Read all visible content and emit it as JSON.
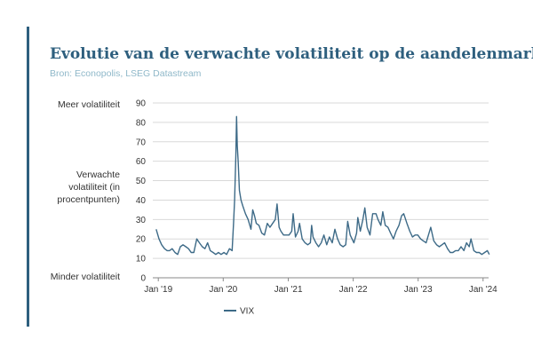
{
  "title": "Evolutie van de verwachte volatiliteit op de aandelenmarkt",
  "subtitle": "Bron: Econopolis, LSEG Datastream",
  "y_labels": {
    "top": "Meer volatiliteit",
    "middle": "Verwachte volatiliteit (in procentpunten)",
    "bottom": "Minder volatiliteit"
  },
  "colors": {
    "accent": "#2e5f7e",
    "series": "#3d6a87",
    "subtitle": "#8fb8c9"
  },
  "chart_data": {
    "type": "line",
    "title": "Evolutie van de verwachte volatiliteit op de aandelenmarkt",
    "xlabel": "",
    "ylabel": "Verwachte volatiliteit (in procentpunten)",
    "ylim": [
      0,
      90
    ],
    "yticks": [
      0,
      10,
      20,
      30,
      40,
      50,
      60,
      70,
      80,
      90
    ],
    "xlim": [
      "2018-12",
      "2024-02"
    ],
    "xticks": [
      {
        "label": "Jan '19",
        "x": "2019-01"
      },
      {
        "label": "Jan '20",
        "x": "2020-01"
      },
      {
        "label": "Jan '21",
        "x": "2021-01"
      },
      {
        "label": "Jan '22",
        "x": "2022-01"
      },
      {
        "label": "Jan '23",
        "x": "2023-01"
      },
      {
        "label": "Jan '24",
        "x": "2024-01"
      }
    ],
    "grid": true,
    "legend": "bottom",
    "series": [
      {
        "name": "VIX",
        "x": [
          "2018-12-20",
          "2019-01-05",
          "2019-01-20",
          "2019-02-05",
          "2019-02-20",
          "2019-03-05",
          "2019-03-20",
          "2019-04-05",
          "2019-04-20",
          "2019-05-05",
          "2019-05-20",
          "2019-06-05",
          "2019-06-20",
          "2019-07-05",
          "2019-07-20",
          "2019-08-05",
          "2019-08-20",
          "2019-09-05",
          "2019-09-20",
          "2019-10-05",
          "2019-10-20",
          "2019-11-05",
          "2019-11-20",
          "2019-12-05",
          "2019-12-20",
          "2020-01-05",
          "2020-01-20",
          "2020-02-05",
          "2020-02-20",
          "2020-02-28",
          "2020-03-05",
          "2020-03-12",
          "2020-03-16",
          "2020-03-20",
          "2020-03-25",
          "2020-04-01",
          "2020-04-10",
          "2020-04-20",
          "2020-05-05",
          "2020-05-20",
          "2020-06-05",
          "2020-06-15",
          "2020-06-25",
          "2020-07-05",
          "2020-07-20",
          "2020-08-05",
          "2020-08-20",
          "2020-09-05",
          "2020-09-20",
          "2020-10-05",
          "2020-10-20",
          "2020-10-30",
          "2020-11-10",
          "2020-11-20",
          "2020-12-05",
          "2020-12-20",
          "2021-01-05",
          "2021-01-20",
          "2021-01-28",
          "2021-02-10",
          "2021-02-25",
          "2021-03-05",
          "2021-03-20",
          "2021-04-05",
          "2021-04-20",
          "2021-05-05",
          "2021-05-12",
          "2021-05-20",
          "2021-06-05",
          "2021-06-20",
          "2021-07-05",
          "2021-07-20",
          "2021-08-05",
          "2021-08-20",
          "2021-09-05",
          "2021-09-20",
          "2021-10-05",
          "2021-10-20",
          "2021-11-05",
          "2021-11-20",
          "2021-12-01",
          "2021-12-15",
          "2022-01-05",
          "2022-01-20",
          "2022-01-27",
          "2022-02-10",
          "2022-02-24",
          "2022-03-07",
          "2022-03-20",
          "2022-04-05",
          "2022-04-20",
          "2022-05-09",
          "2022-05-20",
          "2022-06-05",
          "2022-06-16",
          "2022-06-30",
          "2022-07-15",
          "2022-07-30",
          "2022-08-15",
          "2022-08-30",
          "2022-09-15",
          "2022-09-30",
          "2022-10-12",
          "2022-10-30",
          "2022-11-15",
          "2022-11-30",
          "2022-12-15",
          "2022-12-30",
          "2023-01-15",
          "2023-01-30",
          "2023-02-15",
          "2023-02-28",
          "2023-03-13",
          "2023-03-30",
          "2023-04-15",
          "2023-04-30",
          "2023-05-15",
          "2023-05-30",
          "2023-06-15",
          "2023-06-30",
          "2023-07-15",
          "2023-07-30",
          "2023-08-15",
          "2023-08-30",
          "2023-09-15",
          "2023-09-30",
          "2023-10-15",
          "2023-10-25",
          "2023-11-10",
          "2023-11-25",
          "2023-12-10",
          "2023-12-25",
          "2024-01-10",
          "2024-01-25",
          "2024-02-05"
        ],
        "values": [
          25,
          20,
          17,
          15,
          14,
          14,
          15,
          13,
          12,
          16,
          17,
          16,
          15,
          13,
          13,
          20,
          18,
          16,
          15,
          18,
          14,
          13,
          12,
          13,
          12,
          13,
          12,
          15,
          14,
          28,
          40,
          63,
          83,
          68,
          60,
          45,
          40,
          37,
          33,
          30,
          25,
          35,
          32,
          28,
          27,
          23,
          22,
          28,
          26,
          28,
          30,
          38,
          26,
          24,
          22,
          22,
          22,
          24,
          33,
          21,
          24,
          28,
          20,
          18,
          17,
          18,
          27,
          21,
          18,
          16,
          18,
          22,
          17,
          21,
          18,
          25,
          20,
          17,
          16,
          17,
          29,
          22,
          18,
          23,
          31,
          24,
          30,
          36,
          26,
          22,
          33,
          33,
          30,
          27,
          34,
          27,
          26,
          23,
          20,
          24,
          27,
          32,
          33,
          28,
          24,
          21,
          22,
          22,
          20,
          19,
          18,
          22,
          26,
          19,
          17,
          16,
          17,
          18,
          15,
          13,
          13,
          14,
          14,
          16,
          14,
          18,
          16,
          20,
          14,
          13,
          13,
          12,
          13,
          14,
          12
        ]
      }
    ]
  }
}
